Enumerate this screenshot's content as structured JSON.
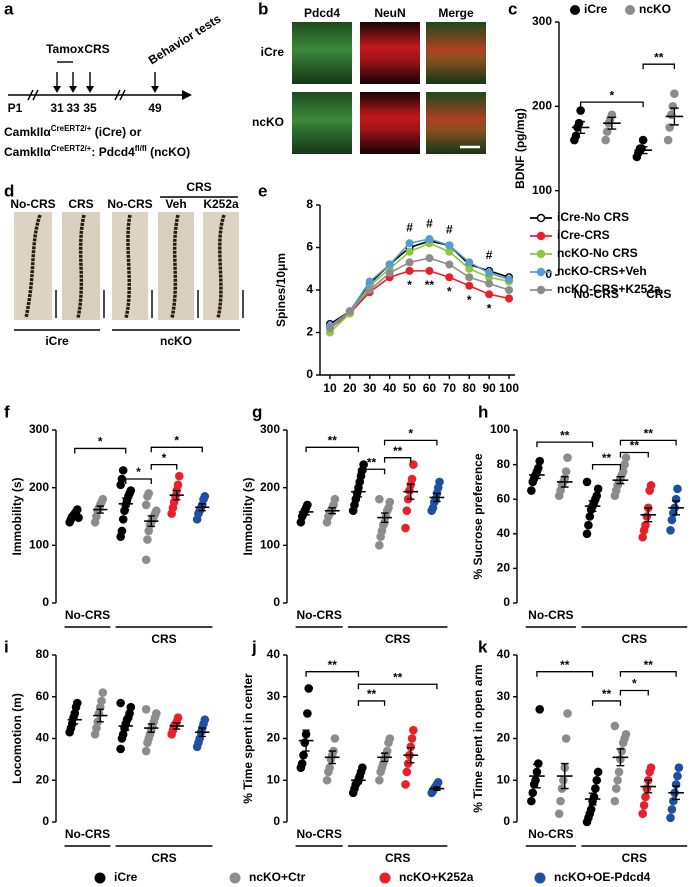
{
  "panel_letters": [
    "a",
    "b",
    "c",
    "d",
    "e",
    "f",
    "g",
    "h",
    "i",
    "j",
    "k"
  ],
  "diagram_a": {
    "timepoints": [
      "P1",
      "31",
      "33",
      "35",
      "49"
    ],
    "tamox": "Tamox",
    "crs": "CRS",
    "behavior": "Behavior tests",
    "genotype": [
      [
        "CamkIIα",
        "CreERT2/+",
        " (iCre) or"
      ],
      [
        "CamkIIα",
        "CreERT2/+",
        ": Pdcd4",
        "fl/fl",
        " (ncKO)"
      ]
    ]
  },
  "image_b": {
    "columns": [
      "Pdcd4",
      "NeuN",
      "Merge"
    ],
    "rows": [
      "iCre",
      "ncKO"
    ]
  },
  "image_d": {
    "top": [
      "No-CRS",
      "CRS",
      "No-CRS"
    ],
    "crs": "CRS",
    "treat": [
      "Veh",
      "K252a"
    ],
    "groups": [
      "iCre",
      "ncKO"
    ]
  },
  "chart_data": [
    {
      "type": "dot",
      "panel": "c",
      "ylabel": "BDNF (pg/mg)",
      "ylim": [
        0,
        300
      ],
      "yticks": [
        0,
        100,
        200,
        300
      ],
      "group_labels": [
        "No-CRS",
        "CRS"
      ],
      "legend": [
        {
          "name": "iCre",
          "color": "#000000"
        },
        {
          "name": "ncKO",
          "color": "#8c8c8c"
        }
      ],
      "brackets": [
        {
          "label": "*"
        },
        {
          "label": "**"
        }
      ],
      "groups": [
        {
          "color": "#000000",
          "mean": 175,
          "sem": 7,
          "points": [
            160,
            165,
            175,
            180,
            195
          ]
        },
        {
          "color": "#8c8c8c",
          "mean": 180,
          "sem": 7,
          "points": [
            160,
            170,
            180,
            185,
            190
          ]
        },
        {
          "color": "#000000",
          "mean": 148,
          "sem": 4,
          "points": [
            140,
            145,
            150,
            150,
            160
          ]
        },
        {
          "color": "#8c8c8c",
          "mean": 188,
          "sem": 10,
          "points": [
            160,
            175,
            190,
            200,
            215
          ]
        }
      ]
    },
    {
      "type": "line",
      "panel": "e",
      "ylabel": "Spines/10μm",
      "x": [
        10,
        20,
        30,
        40,
        50,
        60,
        70,
        80,
        90,
        100
      ],
      "xlim": [
        5,
        103
      ],
      "xticks": [
        10,
        20,
        30,
        40,
        50,
        60,
        70,
        80,
        90,
        100
      ],
      "ylim": [
        0,
        8
      ],
      "yticks": [
        0,
        2,
        4,
        6,
        8
      ],
      "series": [
        {
          "name": "iCre-No CRS",
          "color": "#000000",
          "marker": "open",
          "values": [
            2.4,
            3.0,
            4.3,
            5.2,
            6.0,
            6.3,
            6.1,
            5.2,
            4.9,
            4.6
          ]
        },
        {
          "name": "iCre-CRS",
          "color": "#e8202a",
          "marker": "filled",
          "values": [
            2.2,
            2.9,
            3.9,
            4.6,
            4.9,
            4.9,
            4.6,
            4.2,
            3.8,
            3.6
          ]
        },
        {
          "name": "ncKO-No CRS",
          "color": "#8dc63f",
          "marker": "filled",
          "values": [
            2.0,
            2.9,
            4.2,
            5.0,
            5.8,
            6.2,
            5.8,
            5.0,
            4.6,
            4.4
          ]
        },
        {
          "name": "ncKO-CRS+Veh",
          "color": "#5b9bd5",
          "marker": "filled",
          "values": [
            2.3,
            3.0,
            4.4,
            5.2,
            6.2,
            6.4,
            6.1,
            5.3,
            4.8,
            4.5
          ]
        },
        {
          "name": "ncKO-CRS+K252a",
          "color": "#8c8c8c",
          "marker": "filled",
          "values": [
            2.2,
            3.0,
            4.0,
            4.8,
            5.3,
            5.5,
            5.2,
            4.6,
            4.3,
            4.0
          ]
        }
      ],
      "annotations": [
        {
          "text": "#",
          "x": 50,
          "y": 6.9
        },
        {
          "text": "#",
          "x": 60,
          "y": 7.1
        },
        {
          "text": "#",
          "x": 70,
          "y": 6.8
        },
        {
          "text": "#",
          "x": 90,
          "y": 5.6
        },
        {
          "text": "*",
          "x": 50,
          "y": 4.2
        },
        {
          "text": "**",
          "x": 60,
          "y": 4.2
        },
        {
          "text": "*",
          "x": 70,
          "y": 3.9
        },
        {
          "text": "*",
          "x": 80,
          "y": 3.5
        },
        {
          "text": "*",
          "x": 90,
          "y": 3.1
        }
      ]
    },
    {
      "type": "dot",
      "panel": "f",
      "ylabel": "Immobility (s)",
      "ylim": [
        0,
        300
      ],
      "yticks": [
        0,
        100,
        200,
        300
      ],
      "group_labels": [
        "No-CRS",
        "CRS"
      ],
      "brackets": [
        {
          "label": "*"
        },
        {
          "label": "*"
        },
        {
          "label": "*"
        },
        {
          "label": "*"
        }
      ],
      "groups": [
        {
          "color": "#000000",
          "mean": 150,
          "sem": 4,
          "points": [
            140,
            145,
            150,
            152,
            155,
            158,
            162,
            148
          ]
        },
        {
          "color": "#8c8c8c",
          "mean": 162,
          "sem": 6,
          "points": [
            140,
            150,
            160,
            165,
            170,
            175,
            180
          ]
        },
        {
          "color": "#000000",
          "mean": 172,
          "sem": 10,
          "points": [
            115,
            125,
            145,
            160,
            170,
            178,
            185,
            190,
            195,
            205,
            215,
            230
          ]
        },
        {
          "color": "#8c8c8c",
          "mean": 142,
          "sem": 9,
          "points": [
            75,
            110,
            125,
            135,
            140,
            145,
            150,
            155,
            160,
            170,
            185,
            190
          ]
        },
        {
          "color": "#e8202a",
          "mean": 187,
          "sem": 8,
          "points": [
            155,
            165,
            175,
            185,
            195,
            205,
            220
          ]
        },
        {
          "color": "#1f4fa0",
          "mean": 166,
          "sem": 6,
          "points": [
            145,
            155,
            160,
            165,
            170,
            180,
            185
          ]
        }
      ]
    },
    {
      "type": "dot",
      "panel": "g",
      "ylabel": "Immobility (s)",
      "ylim": [
        0,
        300
      ],
      "yticks": [
        0,
        100,
        200,
        300
      ],
      "group_labels": [
        "No-CRS",
        "CRS"
      ],
      "brackets": [
        {
          "label": "**"
        },
        {
          "label": "**"
        },
        {
          "label": "**"
        },
        {
          "label": "*"
        }
      ],
      "groups": [
        {
          "color": "#000000",
          "mean": 158,
          "sem": 5,
          "points": [
            140,
            150,
            155,
            160,
            165,
            170
          ]
        },
        {
          "color": "#8c8c8c",
          "mean": 160,
          "sem": 5,
          "points": [
            140,
            150,
            155,
            160,
            165,
            170,
            180
          ]
        },
        {
          "color": "#000000",
          "mean": 193,
          "sem": 9,
          "points": [
            160,
            170,
            180,
            190,
            200,
            210,
            220,
            230,
            240
          ]
        },
        {
          "color": "#8c8c8c",
          "mean": 148,
          "sem": 8,
          "points": [
            100,
            115,
            125,
            135,
            140,
            150,
            160,
            165,
            175,
            180
          ]
        },
        {
          "color": "#e8202a",
          "mean": 193,
          "sem": 13,
          "points": [
            130,
            160,
            180,
            195,
            205,
            215,
            240
          ]
        },
        {
          "color": "#1f4fa0",
          "mean": 183,
          "sem": 7,
          "points": [
            160,
            165,
            175,
            180,
            190,
            200,
            210
          ]
        }
      ]
    },
    {
      "type": "dot",
      "panel": "h",
      "ylabel": "% Sucrose preference",
      "ylim": [
        0,
        100
      ],
      "yticks": [
        0,
        20,
        40,
        60,
        80,
        100
      ],
      "group_labels": [
        "No-CRS",
        "CRS"
      ],
      "brackets": [
        {
          "label": "**"
        },
        {
          "label": "**"
        },
        {
          "label": "**"
        },
        {
          "label": "**"
        }
      ],
      "groups": [
        {
          "color": "#000000",
          "mean": 74,
          "sem": 2,
          "points": [
            65,
            70,
            72,
            74,
            76,
            78,
            82
          ]
        },
        {
          "color": "#8c8c8c",
          "mean": 70,
          "sem": 3,
          "points": [
            62,
            65,
            68,
            70,
            72,
            76,
            84
          ]
        },
        {
          "color": "#000000",
          "mean": 56,
          "sem": 3,
          "points": [
            40,
            45,
            50,
            54,
            56,
            58,
            60,
            62,
            66,
            70
          ]
        },
        {
          "color": "#8c8c8c",
          "mean": 71,
          "sem": 2,
          "points": [
            62,
            65,
            68,
            70,
            72,
            74,
            76,
            80,
            84
          ]
        },
        {
          "color": "#e8202a",
          "mean": 51,
          "sem": 4,
          "points": [
            38,
            42,
            45,
            50,
            55,
            65,
            68
          ]
        },
        {
          "color": "#1f4fa0",
          "mean": 55,
          "sem": 4,
          "points": [
            42,
            48,
            52,
            55,
            60,
            66
          ]
        }
      ]
    },
    {
      "type": "dot",
      "panel": "i",
      "ylabel": "Locomotion (m)",
      "ylim": [
        0,
        80
      ],
      "yticks": [
        0,
        20,
        40,
        60,
        80
      ],
      "group_labels": [
        "No-CRS",
        "CRS"
      ],
      "brackets": [],
      "groups": [
        {
          "color": "#000000",
          "mean": 49,
          "sem": 2,
          "points": [
            43,
            45,
            47,
            50,
            52,
            55,
            57
          ]
        },
        {
          "color": "#8c8c8c",
          "mean": 51,
          "sem": 3,
          "points": [
            42,
            45,
            48,
            52,
            55,
            58,
            62
          ]
        },
        {
          "color": "#000000",
          "mean": 46,
          "sem": 2,
          "points": [
            35,
            40,
            42,
            45,
            47,
            49,
            50,
            52,
            55,
            57
          ]
        },
        {
          "color": "#8c8c8c",
          "mean": 45,
          "sem": 2,
          "points": [
            34,
            38,
            40,
            42,
            44,
            46,
            48,
            50,
            52,
            54
          ]
        },
        {
          "color": "#e8202a",
          "mean": 46,
          "sem": 1.5,
          "points": [
            42,
            44,
            46,
            47,
            48,
            50
          ]
        },
        {
          "color": "#1f4fa0",
          "mean": 43,
          "sem": 2,
          "points": [
            36,
            38,
            40,
            43,
            45,
            47,
            49
          ]
        }
      ]
    },
    {
      "type": "dot",
      "panel": "j",
      "ylabel": "% Time  spent in center",
      "ylim": [
        0,
        40
      ],
      "yticks": [
        0,
        10,
        20,
        30,
        40
      ],
      "group_labels": [
        "No-CRS",
        "CRS"
      ],
      "brackets": [
        {
          "label": "**"
        },
        {
          "label": "**"
        },
        {
          "label": "**"
        }
      ],
      "groups": [
        {
          "color": "#000000",
          "mean": 19.5,
          "sem": 2.5,
          "points": [
            13,
            14,
            16,
            19,
            21,
            26,
            32
          ]
        },
        {
          "color": "#8c8c8c",
          "mean": 15.5,
          "sem": 1.5,
          "points": [
            10,
            12,
            13,
            15,
            16,
            17,
            20
          ]
        },
        {
          "color": "#000000",
          "mean": 10,
          "sem": 0.8,
          "points": [
            7,
            8,
            9,
            9.5,
            10,
            11,
            12,
            13
          ]
        },
        {
          "color": "#8c8c8c",
          "mean": 15.5,
          "sem": 1,
          "points": [
            10,
            12,
            13,
            14,
            15,
            16,
            17,
            19,
            20
          ]
        },
        {
          "color": "#e8202a",
          "mean": 16,
          "sem": 1.8,
          "points": [
            9,
            12,
            14,
            16,
            18,
            20,
            22
          ]
        },
        {
          "color": "#1f4fa0",
          "mean": 8,
          "sem": 0.4,
          "points": [
            7,
            7.5,
            8,
            8.5,
            9,
            9.5
          ]
        }
      ]
    },
    {
      "type": "dot",
      "panel": "k",
      "ylabel": "% Time  spent in open arm",
      "ylim": [
        0,
        40
      ],
      "yticks": [
        0,
        10,
        20,
        30,
        40
      ],
      "group_labels": [
        "No-CRS",
        "CRS"
      ],
      "brackets": [
        {
          "label": "**"
        },
        {
          "label": "**"
        },
        {
          "label": "*"
        },
        {
          "label": "**"
        }
      ],
      "groups": [
        {
          "color": "#000000",
          "mean": 11,
          "sem": 2.8,
          "points": [
            5,
            7,
            9,
            10,
            12,
            14,
            27
          ]
        },
        {
          "color": "#8c8c8c",
          "mean": 11,
          "sem": 3,
          "points": [
            2,
            5,
            8,
            10,
            13,
            20,
            26
          ]
        },
        {
          "color": "#000000",
          "mean": 5.5,
          "sem": 1.4,
          "points": [
            0,
            1,
            2,
            3,
            5,
            6,
            8,
            10,
            12
          ]
        },
        {
          "color": "#8c8c8c",
          "mean": 15.5,
          "sem": 2,
          "points": [
            5,
            8,
            10,
            12,
            15,
            17,
            19,
            20,
            21,
            23
          ]
        },
        {
          "color": "#e8202a",
          "mean": 8.5,
          "sem": 1.5,
          "points": [
            2,
            4,
            6,
            8,
            10,
            12,
            13
          ]
        },
        {
          "color": "#1f4fa0",
          "mean": 7,
          "sem": 1.6,
          "points": [
            1,
            3,
            5,
            7,
            9,
            11,
            13
          ]
        }
      ]
    }
  ],
  "legend": [
    {
      "name": "iCre",
      "color": "#000000"
    },
    {
      "name": "ncKO+Ctr",
      "color": "#8c8c8c"
    },
    {
      "name": "ncKO+K252a",
      "color": "#e8202a"
    },
    {
      "name": "ncKO+OE-Pdcd4",
      "color": "#1f4fa0"
    }
  ]
}
